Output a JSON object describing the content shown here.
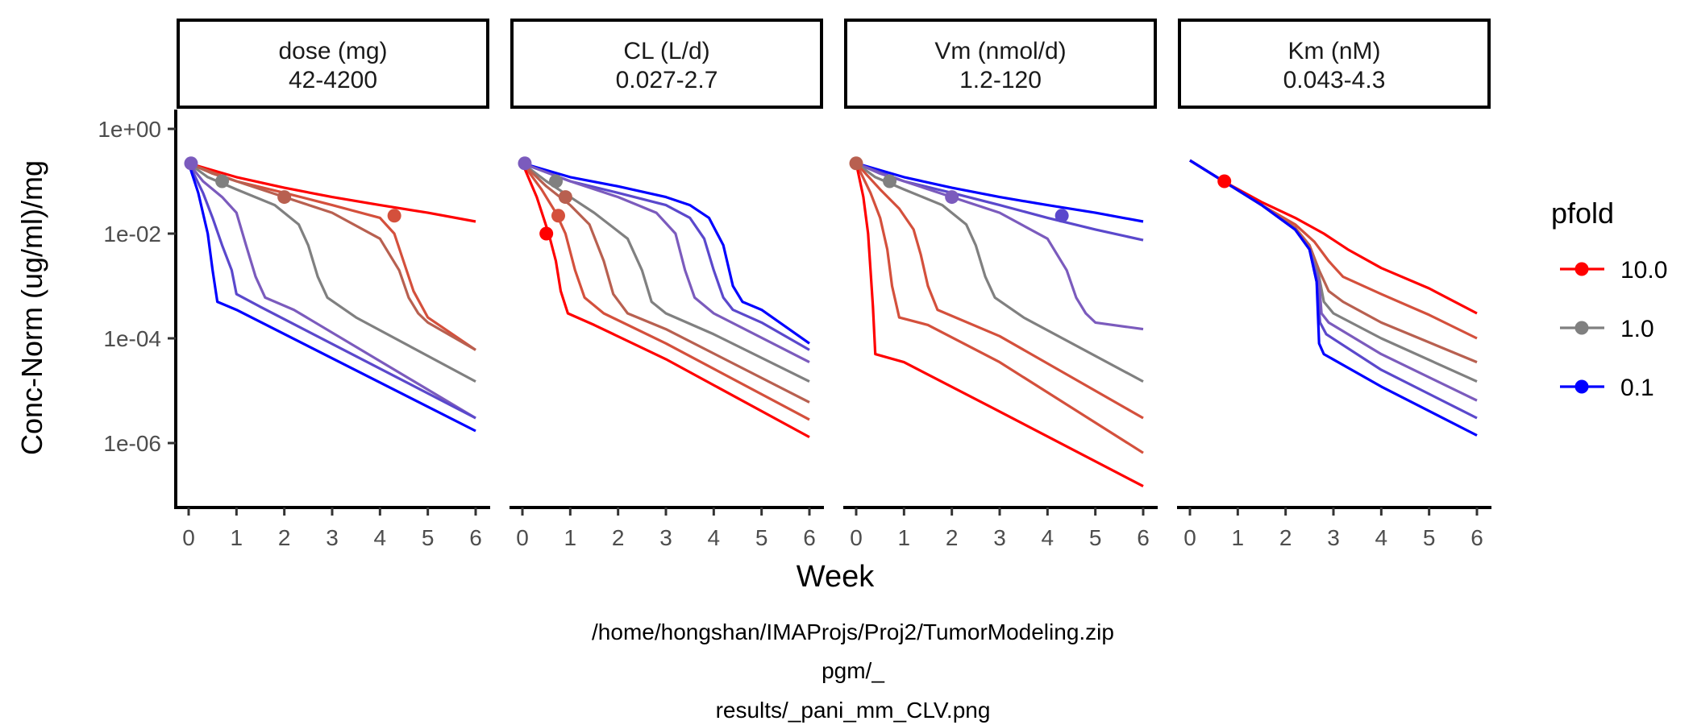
{
  "chart_data": {
    "type": "line",
    "xlabel": "Week",
    "ylabel": "Conc-Norm (ug/ml)/mg",
    "y_scale": "log10",
    "x_ticks": [
      0,
      1,
      2,
      3,
      4,
      5,
      6
    ],
    "y_ticks": [
      1,
      0.01,
      0.0001,
      1e-06
    ],
    "y_tick_labels": [
      "1e+00",
      "1e-02",
      "1e-04",
      "1e-06"
    ],
    "grid": false,
    "legend": {
      "title": "pfold",
      "position": "right",
      "entries": [
        {
          "label": "10.0",
          "color": "#ff0000"
        },
        {
          "label": "1.0",
          "color": "#808080"
        },
        {
          "label": "0.1",
          "color": "#0000ff"
        }
      ]
    },
    "caption": [
      "/home/hongshan/IMAProjs/Proj2/TumorModeling.zip",
      "pgm/_",
      "results/_pani_mm_CLV.png"
    ],
    "panels": [
      {
        "strip": [
          "dose (mg)",
          "42-4200"
        ],
        "series": [
          {
            "color": "#ff0000",
            "x": [
              0,
              1,
              2,
              3,
              4,
              5,
              6
            ],
            "y": [
              0.22,
              0.12,
              0.075,
              0.05,
              0.035,
              0.025,
              0.017
            ]
          },
          {
            "color": "#d4503c",
            "x": [
              0,
              1,
              2,
              3,
              4,
              4.3,
              4.7,
              5.0,
              6
            ],
            "y": [
              0.22,
              0.1,
              0.06,
              0.035,
              0.02,
              0.01,
              0.0008,
              0.00025,
              6e-05
            ]
          },
          {
            "color": "#b86050",
            "x": [
              0,
              0.5,
              1,
              2,
              3,
              4,
              4.4,
              4.6,
              4.8,
              5,
              6
            ],
            "y": [
              0.22,
              0.14,
              0.1,
              0.05,
              0.025,
              0.008,
              0.002,
              0.0006,
              0.0003,
              0.0002,
              6e-05
            ]
          },
          {
            "color": "#808080",
            "x": [
              0,
              0.4,
              1,
              1.8,
              2.3,
              2.5,
              2.7,
              2.9,
              3.5,
              6
            ],
            "y": [
              0.22,
              0.12,
              0.07,
              0.035,
              0.015,
              0.006,
              0.0015,
              0.0006,
              0.00025,
              1.5e-05
            ]
          },
          {
            "color": "#7b5bbd",
            "x": [
              0,
              0.3,
              0.7,
              1.0,
              1.2,
              1.4,
              1.6,
              2.2,
              6
            ],
            "y": [
              0.22,
              0.1,
              0.05,
              0.025,
              0.006,
              0.0015,
              0.0006,
              0.00035,
              3e-06
            ]
          },
          {
            "color": "#5a48cc",
            "x": [
              0,
              0.3,
              0.5,
              0.7,
              0.9,
              1.0,
              1.5,
              6
            ],
            "y": [
              0.22,
              0.06,
              0.02,
              0.006,
              0.002,
              0.0007,
              0.0004,
              3e-06
            ]
          },
          {
            "color": "#0000ff",
            "x": [
              0,
              0.2,
              0.4,
              0.5,
              0.6,
              1.0,
              6
            ],
            "y": [
              0.22,
              0.06,
              0.01,
              0.002,
              0.0005,
              0.00035,
              1.7e-06
            ]
          }
        ],
        "markers": [
          {
            "x": 0.05,
            "y": 0.22,
            "color": "#7b5bbd"
          },
          {
            "x": 0.7,
            "y": 0.1,
            "color": "#808080"
          },
          {
            "x": 2.0,
            "y": 0.05,
            "color": "#b86050"
          },
          {
            "x": 4.3,
            "y": 0.022,
            "color": "#d4503c"
          }
        ]
      },
      {
        "strip": [
          "CL (L/d)",
          "0.027-2.7"
        ],
        "series": [
          {
            "color": "#0000ff",
            "x": [
              0,
              1,
              2,
              3,
              3.5,
              3.9,
              4.2,
              4.4,
              4.6,
              5,
              6
            ],
            "y": [
              0.22,
              0.12,
              0.08,
              0.05,
              0.035,
              0.02,
              0.006,
              0.001,
              0.0005,
              0.00035,
              8e-05
            ]
          },
          {
            "color": "#5a48cc",
            "x": [
              0,
              1,
              2,
              3,
              3.5,
              3.8,
              4.0,
              4.2,
              4.4,
              5,
              6
            ],
            "y": [
              0.22,
              0.1,
              0.06,
              0.035,
              0.02,
              0.008,
              0.002,
              0.0006,
              0.00035,
              0.0002,
              6e-05
            ]
          },
          {
            "color": "#7b5bbd",
            "x": [
              0,
              1,
              2,
              2.8,
              3.2,
              3.4,
              3.6,
              4.0,
              6
            ],
            "y": [
              0.22,
              0.1,
              0.05,
              0.025,
              0.01,
              0.002,
              0.0006,
              0.0003,
              3.5e-05
            ]
          },
          {
            "color": "#808080",
            "x": [
              0,
              0.5,
              1,
              1.5,
              2.2,
              2.5,
              2.7,
              3.0,
              4,
              6
            ],
            "y": [
              0.22,
              0.1,
              0.05,
              0.025,
              0.008,
              0.002,
              0.0005,
              0.0003,
              0.00012,
              1.5e-05
            ]
          },
          {
            "color": "#b86050",
            "x": [
              0,
              0.5,
              1.0,
              1.4,
              1.7,
              1.9,
              2.2,
              3,
              6
            ],
            "y": [
              0.22,
              0.08,
              0.035,
              0.015,
              0.003,
              0.0007,
              0.0003,
              0.00015,
              6e-06
            ]
          },
          {
            "color": "#d4503c",
            "x": [
              0,
              0.4,
              0.7,
              0.9,
              1.1,
              1.3,
              1.7,
              3,
              6
            ],
            "y": [
              0.22,
              0.07,
              0.025,
              0.01,
              0.002,
              0.0006,
              0.0003,
              8e-05,
              2.8e-06
            ]
          },
          {
            "color": "#ff0000",
            "x": [
              0,
              0.3,
              0.55,
              0.7,
              0.8,
              0.95,
              1.5,
              3,
              6
            ],
            "y": [
              0.22,
              0.05,
              0.01,
              0.003,
              0.0008,
              0.0003,
              0.00018,
              4e-05,
              1.3e-06
            ]
          }
        ],
        "markers": [
          {
            "x": 0.05,
            "y": 0.22,
            "color": "#7b5bbd"
          },
          {
            "x": 0.7,
            "y": 0.1,
            "color": "#808080"
          },
          {
            "x": 0.9,
            "y": 0.05,
            "color": "#b86050"
          },
          {
            "x": 0.75,
            "y": 0.022,
            "color": "#d4503c"
          },
          {
            "x": 0.5,
            "y": 0.01,
            "color": "#ff0000"
          }
        ]
      },
      {
        "strip": [
          "Vm (nmol/d)",
          "1.2-120"
        ],
        "series": [
          {
            "color": "#0000ff",
            "x": [
              0,
              1,
              2,
              3,
              4,
              5,
              6
            ],
            "y": [
              0.22,
              0.12,
              0.075,
              0.05,
              0.035,
              0.025,
              0.017
            ]
          },
          {
            "color": "#5a48cc",
            "x": [
              0,
              1,
              2,
              3,
              4,
              5,
              6
            ],
            "y": [
              0.22,
              0.1,
              0.06,
              0.035,
              0.02,
              0.012,
              0.0075
            ]
          },
          {
            "color": "#7b5bbd",
            "x": [
              0,
              0.5,
              1,
              2,
              3,
              4,
              4.4,
              4.6,
              4.8,
              5,
              6
            ],
            "y": [
              0.22,
              0.14,
              0.1,
              0.05,
              0.025,
              0.008,
              0.002,
              0.0006,
              0.0003,
              0.0002,
              0.00015
            ]
          },
          {
            "color": "#808080",
            "x": [
              0,
              0.4,
              1,
              1.8,
              2.3,
              2.5,
              2.7,
              2.9,
              3.5,
              6
            ],
            "y": [
              0.22,
              0.12,
              0.07,
              0.035,
              0.015,
              0.006,
              0.0015,
              0.0006,
              0.00025,
              1.5e-05
            ]
          },
          {
            "color": "#d4503c",
            "x": [
              0,
              0.5,
              0.9,
              1.2,
              1.35,
              1.5,
              1.7,
              3,
              6
            ],
            "y": [
              0.22,
              0.07,
              0.03,
              0.012,
              0.004,
              0.001,
              0.00035,
              0.00011,
              3e-06
            ]
          },
          {
            "color": "#d4503c",
            "x": [
              0,
              0.3,
              0.5,
              0.65,
              0.75,
              0.9,
              1.5,
              3,
              6
            ],
            "y": [
              0.22,
              0.06,
              0.02,
              0.005,
              0.001,
              0.00025,
              0.00018,
              3.5e-05,
              6.5e-07
            ]
          },
          {
            "color": "#ff0000",
            "x": [
              0,
              0.15,
              0.25,
              0.3,
              0.35,
              0.4,
              1.0,
              3,
              6
            ],
            "y": [
              0.22,
              0.05,
              0.01,
              0.002,
              0.0004,
              5e-05,
              3.5e-05,
              4e-06,
              1.5e-07
            ]
          }
        ],
        "markers": [
          {
            "x": 0.0,
            "y": 0.22,
            "color": "#b86050"
          },
          {
            "x": 0.7,
            "y": 0.1,
            "color": "#808080"
          },
          {
            "x": 2.0,
            "y": 0.05,
            "color": "#7b5bbd"
          },
          {
            "x": 4.3,
            "y": 0.022,
            "color": "#5a48cc"
          }
        ]
      },
      {
        "strip": [
          "Km (nM)",
          "0.043-4.3"
        ],
        "series": [
          {
            "color": "#ff0000",
            "x": [
              0,
              0.7,
              1.5,
              2.2,
              2.8,
              3.3,
              4,
              5,
              6
            ],
            "y": [
              0.25,
              0.1,
              0.04,
              0.02,
              0.01,
              0.005,
              0.0022,
              0.0009,
              0.0003
            ]
          },
          {
            "color": "#d4503c",
            "x": [
              0,
              0.7,
              1.5,
              2.2,
              2.6,
              2.9,
              3.2,
              4,
              5,
              6
            ],
            "y": [
              0.25,
              0.1,
              0.035,
              0.015,
              0.007,
              0.003,
              0.0015,
              0.0007,
              0.00028,
              0.0001
            ]
          },
          {
            "color": "#b86050",
            "x": [
              0,
              0.7,
              1.5,
              2.2,
              2.5,
              2.7,
              2.9,
              3.2,
              4,
              6
            ],
            "y": [
              0.25,
              0.1,
              0.035,
              0.013,
              0.006,
              0.002,
              0.0008,
              0.0005,
              0.0002,
              3.5e-05
            ]
          },
          {
            "color": "#808080",
            "x": [
              0,
              0.7,
              1.5,
              2.2,
              2.5,
              2.7,
              2.8,
              3.0,
              4,
              6
            ],
            "y": [
              0.25,
              0.1,
              0.035,
              0.012,
              0.005,
              0.0015,
              0.0005,
              0.0003,
              0.0001,
              1.5e-05
            ]
          },
          {
            "color": "#7b5bbd",
            "x": [
              0,
              0.7,
              1.5,
              2.2,
              2.5,
              2.7,
              2.75,
              2.9,
              4,
              6
            ],
            "y": [
              0.25,
              0.1,
              0.035,
              0.012,
              0.005,
              0.0012,
              0.0003,
              0.0002,
              5e-05,
              6.5e-06
            ]
          },
          {
            "color": "#5a48cc",
            "x": [
              0,
              0.7,
              1.5,
              2.2,
              2.5,
              2.65,
              2.72,
              2.85,
              4,
              6
            ],
            "y": [
              0.25,
              0.1,
              0.035,
              0.012,
              0.005,
              0.0012,
              0.0002,
              0.00012,
              2.5e-05,
              3e-06
            ]
          },
          {
            "color": "#0000ff",
            "x": [
              0,
              0.7,
              1.5,
              2.2,
              2.5,
              2.65,
              2.7,
              2.8,
              4,
              6
            ],
            "y": [
              0.25,
              0.1,
              0.035,
              0.012,
              0.005,
              0.0012,
              8e-05,
              5e-05,
              1.2e-05,
              1.4e-06
            ]
          }
        ],
        "markers": [
          {
            "x": 0.72,
            "y": 0.1,
            "color": "#ff0000"
          }
        ]
      }
    ]
  }
}
